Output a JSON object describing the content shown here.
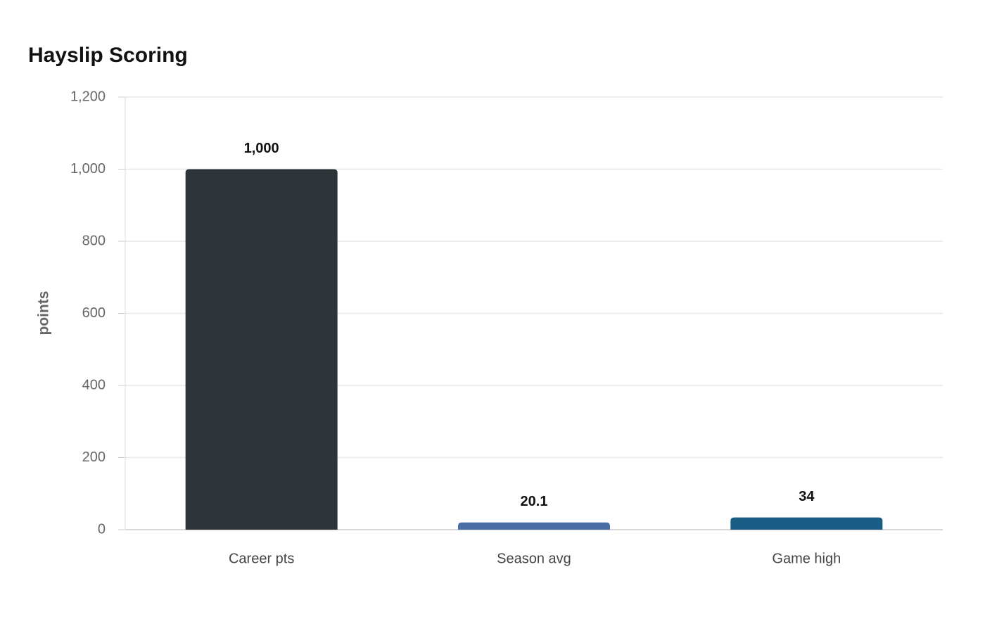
{
  "chart_data": {
    "type": "bar",
    "title": "Hayslip Scoring",
    "y_label": "points",
    "categories": [
      "Career pts",
      "Season avg",
      "Game high"
    ],
    "values": [
      1000,
      20.1,
      34
    ],
    "value_labels": [
      "1,000",
      "20.1",
      "34"
    ],
    "colors": [
      "#2e3538",
      "#4a6fa5",
      "#1a5e86"
    ],
    "ylim": [
      0,
      1200
    ],
    "yticks": [
      0,
      200,
      400,
      600,
      800,
      {
        "value": 1000,
        "label": "1,000"
      },
      {
        "value": 1200,
        "label": "1,200"
      }
    ],
    "grid": true
  }
}
